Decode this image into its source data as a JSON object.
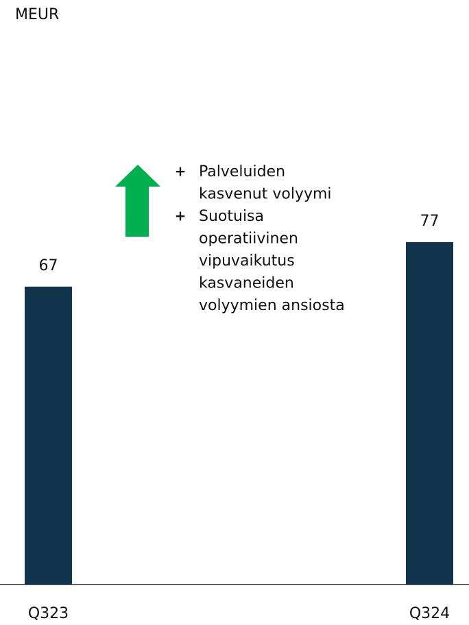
{
  "chart_data": {
    "type": "bar",
    "unit_label": "MEUR",
    "categories": [
      "Q323",
      "Q324"
    ],
    "values": [
      67,
      77
    ],
    "color": "#11344c",
    "annotation": {
      "items": [
        {
          "marker": "+",
          "lines": [
            "Palveluiden",
            "kasvenut volyymi"
          ]
        },
        {
          "marker": "+",
          "lines": [
            "Suotuisa",
            "operatiivinen",
            "vipuvaikutus",
            "kasvaneiden",
            "volyymien ansiosta"
          ]
        }
      ]
    }
  }
}
